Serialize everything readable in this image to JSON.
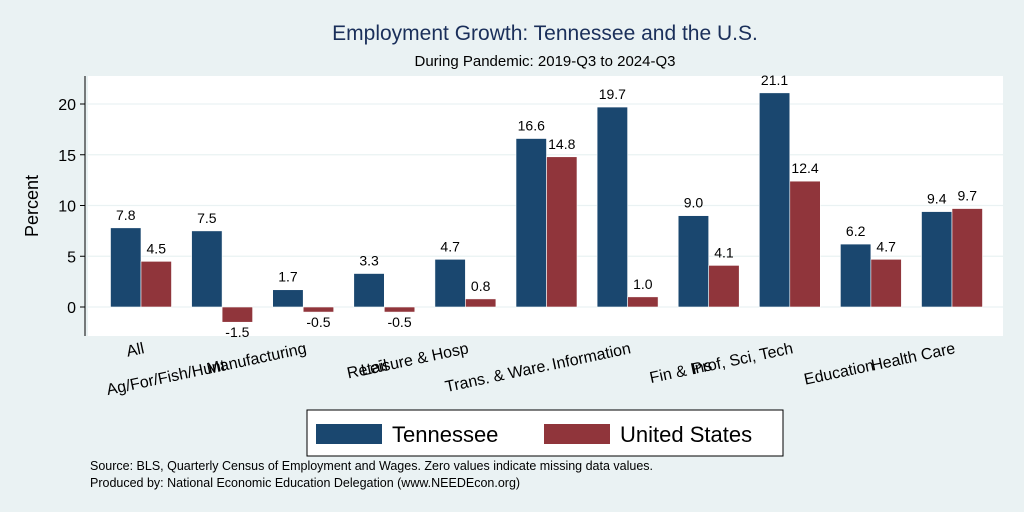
{
  "chart_data": {
    "type": "bar",
    "title": "Employment Growth: Tennessee and the U.S.",
    "subtitle": "During Pandemic: 2019-Q3 to 2024-Q3",
    "ylabel": "Percent",
    "xlabel": "",
    "ylim": [
      -3,
      23
    ],
    "yticks": [
      0,
      5,
      10,
      15,
      20
    ],
    "grid": true,
    "legend_position": "bottom",
    "categories": [
      "All",
      "Ag/For/Fish/Hunt",
      "Manufacturing",
      "Retail",
      "Leisure & Hosp",
      "Trans. & Ware.",
      "Information",
      "Fin & Ins",
      "Prof, Sci, Tech",
      "Education",
      "Health Care"
    ],
    "series": [
      {
        "name": "Tennessee",
        "color": "#1a476f",
        "values": [
          7.8,
          7.5,
          1.7,
          3.3,
          4.7,
          16.6,
          19.7,
          9.0,
          21.1,
          6.2,
          9.4
        ]
      },
      {
        "name": "United States",
        "color": "#90353b",
        "values": [
          4.5,
          -1.5,
          -0.5,
          -0.5,
          0.8,
          14.8,
          1.0,
          4.1,
          12.4,
          4.7,
          9.7
        ]
      }
    ],
    "notes": [
      "Source: BLS, Quarterly Census of Employment and Wages. Zero values indicate missing data values.",
      "Produced by: National Economic Education Delegation (www.NEEDEcon.org)"
    ]
  }
}
